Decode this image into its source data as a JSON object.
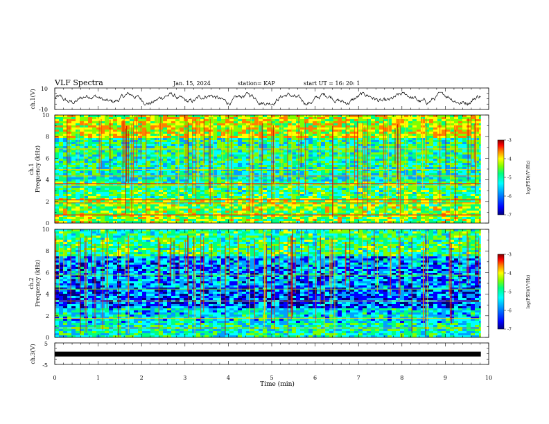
{
  "header": {
    "title": "VLF Spectra",
    "date": "Jan. 15, 2024",
    "station": "station= KAP",
    "start": "start  UT  =   16: 20: 1"
  },
  "colorbar": {
    "label": "log(PSD)(V²/Hz)",
    "ticks": [
      "-3",
      "-4",
      "-5",
      "-6",
      "-7"
    ],
    "range": [
      -7,
      -3
    ],
    "colors": [
      "#00007f",
      "#0000ff",
      "#00a0ff",
      "#00ffff",
      "#00ff80",
      "#80ff00",
      "#ffff00",
      "#ff8000",
      "#ff0000",
      "#7f0000"
    ]
  },
  "chart_data": [
    {
      "type": "line",
      "ylabel": "ch.1(V)",
      "ylim": [
        -10,
        10
      ],
      "yticks": [
        "10",
        "-10"
      ],
      "x_range_min": [
        0,
        9.82
      ],
      "description_series": "noisy waveform oscillating roughly between -4 and 4 V"
    },
    {
      "type": "heatmap",
      "ylabel_top": "ch.1",
      "ylabel": "Frequency (kHz)",
      "ylim": [
        0,
        10
      ],
      "yticks": [
        "0",
        "2",
        "4",
        "6",
        "8",
        "10"
      ],
      "x_range_min": [
        0,
        9.82
      ]
    },
    {
      "type": "heatmap",
      "ylabel_top": "ch.2",
      "ylabel": "Frequency (kHz)",
      "ylim": [
        0,
        10
      ],
      "yticks": [
        "0",
        "2",
        "4",
        "6",
        "8",
        "10"
      ],
      "x_range_min": [
        0,
        9.82
      ]
    },
    {
      "type": "line",
      "ylabel": "ch.3(V)",
      "ylim": [
        -5,
        5
      ],
      "yticks": [
        "5",
        "-5"
      ],
      "x_range_min": [
        0,
        9.82
      ],
      "level": -0.2
    }
  ],
  "xaxis": {
    "label": "Time (min)",
    "ticks": [
      "0",
      "1",
      "2",
      "3",
      "4",
      "5",
      "6",
      "7",
      "8",
      "9",
      "10"
    ],
    "range": [
      0,
      10
    ]
  }
}
